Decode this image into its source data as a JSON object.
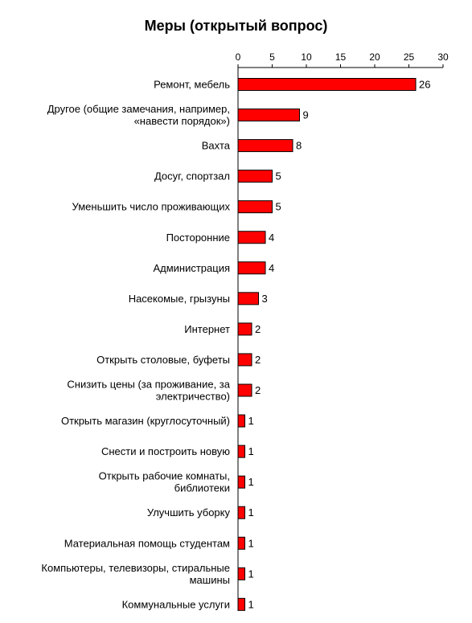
{
  "chart_data": {
    "type": "bar",
    "orientation": "horizontal",
    "title": "Меры (открытый вопрос)",
    "xlabel": "",
    "ylabel": "",
    "xlim": [
      0,
      30
    ],
    "ticks": [
      "0",
      "5",
      "10",
      "15",
      "20",
      "25",
      "30"
    ],
    "tick_values": [
      0,
      5,
      10,
      15,
      20,
      25,
      30
    ],
    "axis_position": "top",
    "grid": false,
    "legend": "none",
    "bar_color": "#ff0000",
    "bar_border_color": "#000000",
    "categories": [
      [
        "Ремонт, мебель"
      ],
      [
        "Другое (общие замечания, например,",
        "«навести порядок»)"
      ],
      [
        "Вахта"
      ],
      [
        "Досуг, спортзал"
      ],
      [
        "Уменьшить число проживающих"
      ],
      [
        "Посторонние"
      ],
      [
        "Администрация"
      ],
      [
        "Насекомые, грызуны"
      ],
      [
        "Интернет"
      ],
      [
        "Открыть столовые, буфеты"
      ],
      [
        "Снизить цены (за проживание, за",
        "электричество)"
      ],
      [
        "Открыть магазин (круглосуточный)"
      ],
      [
        "Снести и построить новую"
      ],
      [
        "Открыть рабочие комнаты,",
        "библиотеки"
      ],
      [
        "Улучшить уборку"
      ],
      [
        "Материальная помощь студентам"
      ],
      [
        "Компьютеры, телевизоры, стиральные",
        "машины"
      ],
      [
        "Коммунальные услуги"
      ]
    ],
    "values": [
      26,
      9,
      8,
      5,
      5,
      4,
      4,
      3,
      2,
      2,
      2,
      1,
      1,
      1,
      1,
      1,
      1,
      1
    ],
    "value_labels": [
      "26",
      "9",
      "8",
      "5",
      "5",
      "4",
      "4",
      "3",
      "2",
      "2",
      "2",
      "1",
      "1",
      "1",
      "1",
      "1",
      "1",
      "1"
    ]
  }
}
